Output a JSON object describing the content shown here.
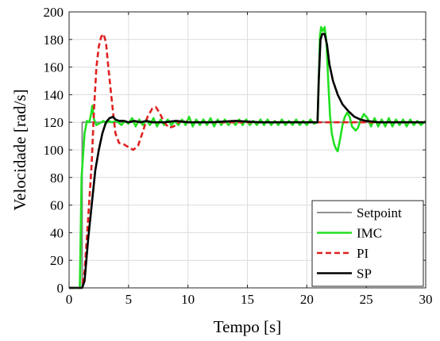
{
  "chart_data": {
    "type": "line",
    "xlabel": "Tempo [s]",
    "ylabel": "Velocidade [rad/s]",
    "xlim": [
      0,
      30
    ],
    "ylim": [
      0,
      200
    ],
    "xticks": [
      0,
      5,
      10,
      15,
      20,
      25,
      30
    ],
    "yticks": [
      0,
      20,
      40,
      60,
      80,
      100,
      120,
      140,
      160,
      180,
      200
    ],
    "grid": true,
    "legend_position": "bottom-right",
    "series": [
      {
        "name": "Setpoint",
        "color": "#808080",
        "style": "solid",
        "points": [
          [
            0,
            0
          ],
          [
            0.5,
            0
          ],
          [
            1.1,
            0
          ],
          [
            1.1,
            120
          ],
          [
            30,
            120
          ]
        ]
      },
      {
        "name": "IMC",
        "color": "#22e022",
        "style": "solid",
        "points": [
          [
            0,
            0
          ],
          [
            0.8,
            0
          ],
          [
            0.9,
            0
          ],
          [
            1.05,
            80
          ],
          [
            1.3,
            112
          ],
          [
            1.5,
            121
          ],
          [
            1.7,
            120
          ],
          [
            1.85,
            126
          ],
          [
            1.95,
            132
          ],
          [
            2.1,
            122
          ],
          [
            2.3,
            118
          ],
          [
            2.5,
            119
          ],
          [
            2.7,
            120
          ],
          [
            2.9,
            121
          ],
          [
            3.1,
            119
          ],
          [
            3.3,
            121
          ],
          [
            3.6,
            120
          ],
          [
            4.0,
            121
          ],
          [
            4.4,
            118
          ],
          [
            4.7,
            121
          ],
          [
            5.0,
            119
          ],
          [
            5.3,
            123
          ],
          [
            5.6,
            117
          ],
          [
            5.9,
            122
          ],
          [
            6.2,
            118
          ],
          [
            6.5,
            122
          ],
          [
            6.8,
            118
          ],
          [
            7.1,
            123
          ],
          [
            7.4,
            117
          ],
          [
            7.7,
            122
          ],
          [
            8.0,
            118
          ],
          [
            8.3,
            122
          ],
          [
            8.6,
            118
          ],
          [
            8.9,
            121
          ],
          [
            9.2,
            118
          ],
          [
            9.5,
            122
          ],
          [
            9.8,
            118
          ],
          [
            10.1,
            124
          ],
          [
            10.4,
            117
          ],
          [
            10.7,
            122
          ],
          [
            11.0,
            118
          ],
          [
            11.3,
            122
          ],
          [
            11.6,
            118
          ],
          [
            11.9,
            123
          ],
          [
            12.2,
            117
          ],
          [
            12.5,
            122
          ],
          [
            12.8,
            118
          ],
          [
            13.1,
            122
          ],
          [
            13.4,
            118
          ],
          [
            13.7,
            121
          ],
          [
            14.0,
            118
          ],
          [
            14.3,
            122
          ],
          [
            14.6,
            118
          ],
          [
            14.9,
            122
          ],
          [
            15.2,
            118
          ],
          [
            15.5,
            121
          ],
          [
            15.8,
            118
          ],
          [
            16.1,
            122
          ],
          [
            16.4,
            118
          ],
          [
            16.7,
            122
          ],
          [
            17.0,
            118
          ],
          [
            17.3,
            121
          ],
          [
            17.6,
            118
          ],
          [
            17.9,
            122
          ],
          [
            18.2,
            118
          ],
          [
            18.5,
            121
          ],
          [
            18.8,
            118
          ],
          [
            19.1,
            122
          ],
          [
            19.4,
            118
          ],
          [
            19.7,
            121
          ],
          [
            20.0,
            118
          ],
          [
            20.3,
            122
          ],
          [
            20.6,
            119
          ],
          [
            20.9,
            120
          ],
          [
            21.0,
            150
          ],
          [
            21.1,
            182
          ],
          [
            21.2,
            189
          ],
          [
            21.35,
            186
          ],
          [
            21.5,
            189
          ],
          [
            21.65,
            178
          ],
          [
            21.8,
            150
          ],
          [
            21.95,
            125
          ],
          [
            22.1,
            112
          ],
          [
            22.3,
            104
          ],
          [
            22.5,
            100
          ],
          [
            22.6,
            99
          ],
          [
            22.8,
            108
          ],
          [
            23.0,
            118
          ],
          [
            23.2,
            124
          ],
          [
            23.4,
            127
          ],
          [
            23.6,
            124
          ],
          [
            23.8,
            117
          ],
          [
            24.1,
            114
          ],
          [
            24.3,
            116
          ],
          [
            24.5,
            121
          ],
          [
            24.8,
            126
          ],
          [
            25.1,
            123
          ],
          [
            25.4,
            117
          ],
          [
            25.7,
            123
          ],
          [
            26.0,
            117
          ],
          [
            26.3,
            122
          ],
          [
            26.6,
            117
          ],
          [
            26.9,
            123
          ],
          [
            27.2,
            117
          ],
          [
            27.5,
            122
          ],
          [
            27.8,
            118
          ],
          [
            28.1,
            122
          ],
          [
            28.4,
            117
          ],
          [
            28.7,
            122
          ],
          [
            29.0,
            118
          ],
          [
            29.3,
            121
          ],
          [
            29.6,
            118
          ],
          [
            30,
            121
          ]
        ]
      },
      {
        "name": "PI",
        "color": "#e02020",
        "style": "dashed",
        "points": [
          [
            0,
            0
          ],
          [
            1.1,
            0
          ],
          [
            1.3,
            12
          ],
          [
            1.6,
            50
          ],
          [
            1.9,
            90
          ],
          [
            2.1,
            130
          ],
          [
            2.3,
            160
          ],
          [
            2.5,
            175
          ],
          [
            2.7,
            182
          ],
          [
            2.9,
            184
          ],
          [
            3.1,
            178
          ],
          [
            3.3,
            160
          ],
          [
            3.6,
            135
          ],
          [
            3.9,
            112
          ],
          [
            4.2,
            105
          ],
          [
            4.6,
            104
          ],
          [
            5.0,
            102
          ],
          [
            5.4,
            100
          ],
          [
            5.8,
            103
          ],
          [
            6.2,
            113
          ],
          [
            6.6,
            124
          ],
          [
            7.0,
            130
          ],
          [
            7.3,
            131
          ],
          [
            7.6,
            127
          ],
          [
            8.0,
            120
          ],
          [
            8.4,
            116
          ],
          [
            8.8,
            117
          ],
          [
            9.2,
            120
          ],
          [
            9.6,
            121
          ],
          [
            10.0,
            120
          ],
          [
            30,
            120
          ]
        ]
      },
      {
        "name": "SP",
        "color": "#000000",
        "style": "solid",
        "points": [
          [
            0,
            0
          ],
          [
            0.8,
            0
          ],
          [
            1.1,
            0
          ],
          [
            1.3,
            5
          ],
          [
            1.6,
            35
          ],
          [
            1.9,
            60
          ],
          [
            2.2,
            85
          ],
          [
            2.5,
            100
          ],
          [
            2.8,
            112
          ],
          [
            3.1,
            120
          ],
          [
            3.4,
            123
          ],
          [
            3.7,
            124
          ],
          [
            3.9,
            122
          ],
          [
            4.2,
            121
          ],
          [
            4.6,
            121
          ],
          [
            5.0,
            120
          ],
          [
            5.5,
            121
          ],
          [
            6.0,
            120
          ],
          [
            6.5,
            121
          ],
          [
            7.0,
            120
          ],
          [
            8.0,
            120
          ],
          [
            9.0,
            121
          ],
          [
            10.0,
            120
          ],
          [
            12.0,
            120
          ],
          [
            14.0,
            121
          ],
          [
            16.0,
            120
          ],
          [
            18.0,
            120
          ],
          [
            20.0,
            120
          ],
          [
            20.7,
            120
          ],
          [
            20.9,
            120
          ],
          [
            21.0,
            150
          ],
          [
            21.15,
            180
          ],
          [
            21.3,
            184
          ],
          [
            21.5,
            184
          ],
          [
            21.7,
            176
          ],
          [
            21.9,
            162
          ],
          [
            22.2,
            150
          ],
          [
            22.6,
            140
          ],
          [
            23.0,
            133
          ],
          [
            23.5,
            128
          ],
          [
            24.0,
            124
          ],
          [
            24.5,
            122
          ],
          [
            25.0,
            121
          ],
          [
            26.0,
            120
          ],
          [
            30,
            120
          ]
        ]
      }
    ]
  }
}
